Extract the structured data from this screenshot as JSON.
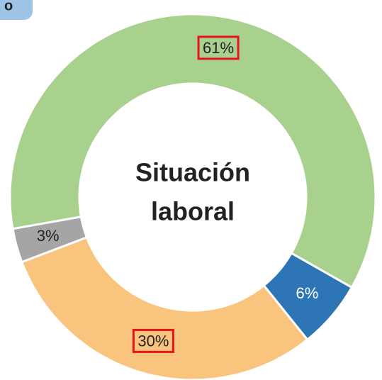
{
  "badge": "o",
  "chart_data": {
    "type": "pie",
    "donut": true,
    "center_text": [
      "Situación",
      "laboral"
    ],
    "values": [
      61,
      6,
      30,
      3
    ],
    "value_labels": [
      "61%",
      "6%",
      "30%",
      "3%"
    ],
    "colors": [
      "#a9d18e",
      "#2e75b6",
      "#f9c47d",
      "#a5a5a5"
    ],
    "label_colors": [
      "#222222",
      "#ffffff",
      "#222222",
      "#222222"
    ],
    "highlighted": [
      true,
      false,
      true,
      false
    ],
    "highlight_color": "#e8141c"
  }
}
